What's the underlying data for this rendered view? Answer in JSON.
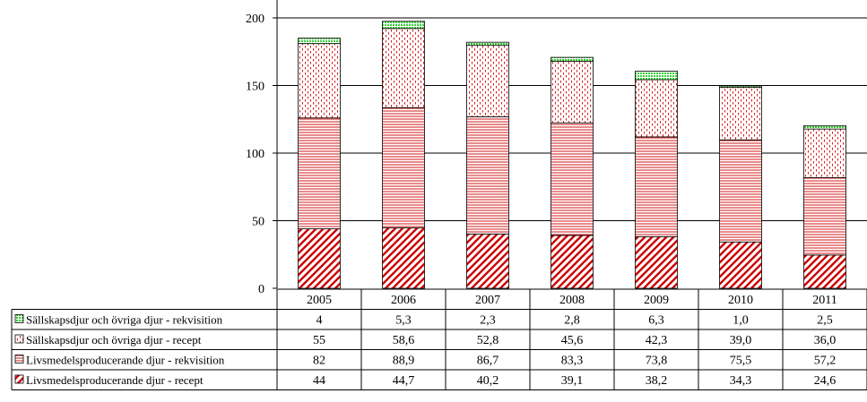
{
  "chart_data": {
    "type": "bar",
    "stacked": true,
    "categories": [
      "2005",
      "2006",
      "2007",
      "2008",
      "2009",
      "2010",
      "2011"
    ],
    "ylim": [
      0,
      200
    ],
    "yticks": [
      0,
      50,
      100,
      150,
      200
    ],
    "grid": true,
    "series": [
      {
        "name": "Livsmedelsproducerande djur - recept",
        "values": [
          44,
          44.7,
          40.2,
          39.1,
          38.2,
          34.3,
          24.6
        ],
        "labels": [
          "44",
          "44,7",
          "40,2",
          "39,1",
          "38,2",
          "34,3",
          "24,6"
        ],
        "pattern": "diagonal",
        "color": "#cc0000"
      },
      {
        "name": "Livsmedelsproducerande djur - rekvisition",
        "values": [
          82,
          88.9,
          86.7,
          83.3,
          73.8,
          75.5,
          57.2
        ],
        "labels": [
          "82",
          "88,9",
          "86,7",
          "83,3",
          "73,8",
          "75,5",
          "57,2"
        ],
        "pattern": "horizontal",
        "color": "#cc0000"
      },
      {
        "name": "Sällskapsdjur och övriga djur - recept",
        "values": [
          55,
          58.6,
          52.8,
          45.6,
          42.3,
          39.0,
          36.0
        ],
        "labels": [
          "55",
          "58,6",
          "52,8",
          "45,6",
          "42,3",
          "39,0",
          "36,0"
        ],
        "pattern": "dotted",
        "color": "#cc0000"
      },
      {
        "name": "Sällskapsdjur och övriga djur - rekvisition",
        "values": [
          4,
          5.3,
          2.3,
          2.8,
          6.3,
          1.0,
          2.5
        ],
        "labels": [
          "4",
          "5,3",
          "2,3",
          "2,8",
          "6,3",
          "1,0",
          "2,5"
        ],
        "pattern": "grid",
        "color": "#33cc33"
      }
    ],
    "table_row_order": [
      3,
      2,
      1,
      0
    ]
  }
}
